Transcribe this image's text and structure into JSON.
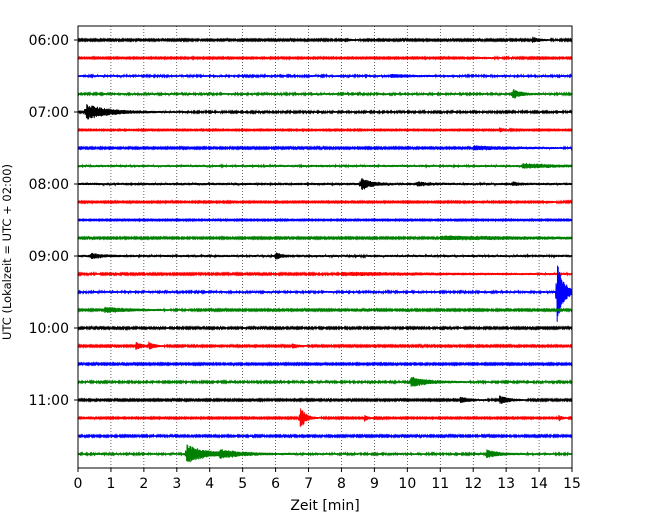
{
  "chart_data": {
    "type": "line",
    "title": "",
    "xlabel": "Zeit  [min]",
    "ylabel": "UTC (Lokalzeit = UTC + 02:00)",
    "xlim": [
      0,
      15
    ],
    "x_ticks": [
      0,
      1,
      2,
      3,
      4,
      5,
      6,
      7,
      8,
      9,
      10,
      11,
      12,
      13,
      14,
      15
    ],
    "x_tick_labels": [
      "0",
      "1",
      "2",
      "3",
      "4",
      "5",
      "6",
      "7",
      "8",
      "9",
      "10",
      "11",
      "12",
      "13",
      "14",
      "15"
    ],
    "y_tick_labels": [
      "06:00",
      "07:00",
      "08:00",
      "09:00",
      "10:00",
      "11:00"
    ],
    "y_tick_rows": [
      0,
      4,
      8,
      12,
      16,
      20
    ],
    "grid": "vertical dotted",
    "minutes_per_row": 15,
    "traces": [
      {
        "row": 0,
        "start": "06:00",
        "color": "#000000",
        "base_amp": 0.1,
        "events": [
          {
            "t": 8.1,
            "amp": 0.22,
            "dur": 0.3
          },
          {
            "t": 13.8,
            "amp": 0.28,
            "dur": 0.4
          }
        ]
      },
      {
        "row": 1,
        "start": "06:15",
        "color": "#ff0000",
        "base_amp": 0.09,
        "events": [
          {
            "t": 11.8,
            "amp": 0.14,
            "dur": 1.2
          }
        ]
      },
      {
        "row": 2,
        "start": "06:30",
        "color": "#0000ff",
        "base_amp": 0.13,
        "events": [
          {
            "t": 9.5,
            "amp": 0.16,
            "dur": 1.0
          }
        ]
      },
      {
        "row": 3,
        "start": "06:45",
        "color": "#008000",
        "base_amp": 0.13,
        "events": [
          {
            "t": 13.2,
            "amp": 0.55,
            "dur": 0.4
          }
        ]
      },
      {
        "row": 4,
        "start": "07:00",
        "color": "#000000",
        "base_amp": 0.12,
        "events": [
          {
            "t": 0.25,
            "amp": 0.85,
            "dur": 1.2
          }
        ]
      },
      {
        "row": 5,
        "start": "07:15",
        "color": "#ff0000",
        "base_amp": 0.08,
        "events": [
          {
            "t": 12.8,
            "amp": 0.25,
            "dur": 0.3
          }
        ]
      },
      {
        "row": 6,
        "start": "07:30",
        "color": "#0000ff",
        "base_amp": 0.1,
        "events": [
          {
            "t": 12.0,
            "amp": 0.22,
            "dur": 2.5
          }
        ]
      },
      {
        "row": 7,
        "start": "07:45",
        "color": "#008000",
        "base_amp": 0.15,
        "events": [
          {
            "t": 13.5,
            "amp": 0.22,
            "dur": 1.5
          }
        ]
      },
      {
        "row": 8,
        "start": "08:00",
        "color": "#000000",
        "base_amp": 0.16,
        "events": [
          {
            "t": 8.6,
            "amp": 0.65,
            "dur": 0.5
          },
          {
            "t": 10.3,
            "amp": 0.22,
            "dur": 0.4
          },
          {
            "t": 13.2,
            "amp": 0.18,
            "dur": 0.3
          }
        ]
      },
      {
        "row": 9,
        "start": "08:15",
        "color": "#ff0000",
        "base_amp": 0.09,
        "events": [
          {
            "t": 14.2,
            "amp": 0.12,
            "dur": 0.5
          }
        ]
      },
      {
        "row": 10,
        "start": "08:30",
        "color": "#0000ff",
        "base_amp": 0.08,
        "events": []
      },
      {
        "row": 11,
        "start": "08:45",
        "color": "#008000",
        "base_amp": 0.1,
        "events": [
          {
            "t": 11.0,
            "amp": 0.2,
            "dur": 8.0
          }
        ]
      },
      {
        "row": 12,
        "start": "09:00",
        "color": "#000000",
        "base_amp": 0.15,
        "events": [
          {
            "t": 0.4,
            "amp": 0.3,
            "dur": 0.5
          },
          {
            "t": 6.0,
            "amp": 0.35,
            "dur": 0.3
          }
        ]
      },
      {
        "row": 13,
        "start": "09:15",
        "color": "#ff0000",
        "base_amp": 0.11,
        "events": [
          {
            "t": 8.0,
            "amp": 0.18,
            "dur": 6.0
          }
        ]
      },
      {
        "row": 14,
        "start": "09:30",
        "color": "#0000ff",
        "base_amp": 0.13,
        "events": [
          {
            "t": 14.55,
            "amp": 3.3,
            "dur": 0.35
          }
        ]
      },
      {
        "row": 15,
        "start": "09:45",
        "color": "#008000",
        "base_amp": 0.1,
        "events": [
          {
            "t": 0.8,
            "amp": 0.3,
            "dur": 1.5
          }
        ]
      },
      {
        "row": 16,
        "start": "10:00",
        "color": "#000000",
        "base_amp": 0.11,
        "events": []
      },
      {
        "row": 17,
        "start": "10:15",
        "color": "#ff0000",
        "base_amp": 0.1,
        "events": [
          {
            "t": 1.75,
            "amp": 0.45,
            "dur": 0.3
          },
          {
            "t": 2.15,
            "amp": 0.4,
            "dur": 0.3
          },
          {
            "t": 6.5,
            "amp": 0.3,
            "dur": 0.3
          }
        ]
      },
      {
        "row": 18,
        "start": "10:30",
        "color": "#0000ff",
        "base_amp": 0.1,
        "events": []
      },
      {
        "row": 19,
        "start": "10:45",
        "color": "#008000",
        "base_amp": 0.12,
        "events": [
          {
            "t": 10.1,
            "amp": 0.55,
            "dur": 0.9
          }
        ]
      },
      {
        "row": 20,
        "start": "11:00",
        "color": "#000000",
        "base_amp": 0.1,
        "events": [
          {
            "t": 11.6,
            "amp": 0.3,
            "dur": 0.6
          },
          {
            "t": 12.8,
            "amp": 0.45,
            "dur": 0.5
          }
        ]
      },
      {
        "row": 21,
        "start": "11:15",
        "color": "#ff0000",
        "base_amp": 0.09,
        "events": [
          {
            "t": 6.75,
            "amp": 1.25,
            "dur": 0.3
          },
          {
            "t": 8.7,
            "amp": 0.35,
            "dur": 0.2
          },
          {
            "t": 14.6,
            "amp": 0.3,
            "dur": 0.2
          }
        ]
      },
      {
        "row": 22,
        "start": "11:30",
        "color": "#0000ff",
        "base_amp": 0.11,
        "events": []
      },
      {
        "row": 23,
        "start": "11:45",
        "color": "#008000",
        "base_amp": 0.13,
        "events": [
          {
            "t": 3.3,
            "amp": 1.0,
            "dur": 1.0
          },
          {
            "t": 4.3,
            "amp": 0.35,
            "dur": 1.2
          },
          {
            "t": 12.4,
            "amp": 0.45,
            "dur": 0.6
          }
        ]
      }
    ]
  }
}
